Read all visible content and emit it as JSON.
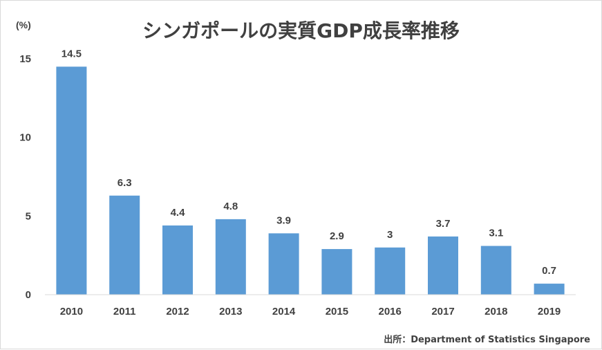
{
  "chart_data": {
    "type": "bar",
    "title": "シンガポールの実質GDP成長率推移",
    "unit_label": "(%)",
    "categories": [
      "2010",
      "2011",
      "2012",
      "2013",
      "2014",
      "2015",
      "2016",
      "2017",
      "2018",
      "2019"
    ],
    "values": [
      14.5,
      6.3,
      4.4,
      4.8,
      3.9,
      2.9,
      3,
      3.7,
      3.1,
      0.7
    ],
    "data_labels": [
      "14.5",
      "6.3",
      "4.4",
      "4.8",
      "3.9",
      "2.9",
      "3",
      "3.7",
      "3.1",
      "0.7"
    ],
    "ylim": [
      0,
      15
    ],
    "yticks": [
      0,
      5,
      10,
      15
    ],
    "grid": false,
    "legend": "none",
    "bar_color": "#5b9bd5",
    "source": "出所：Department of Statistics Singapore"
  }
}
